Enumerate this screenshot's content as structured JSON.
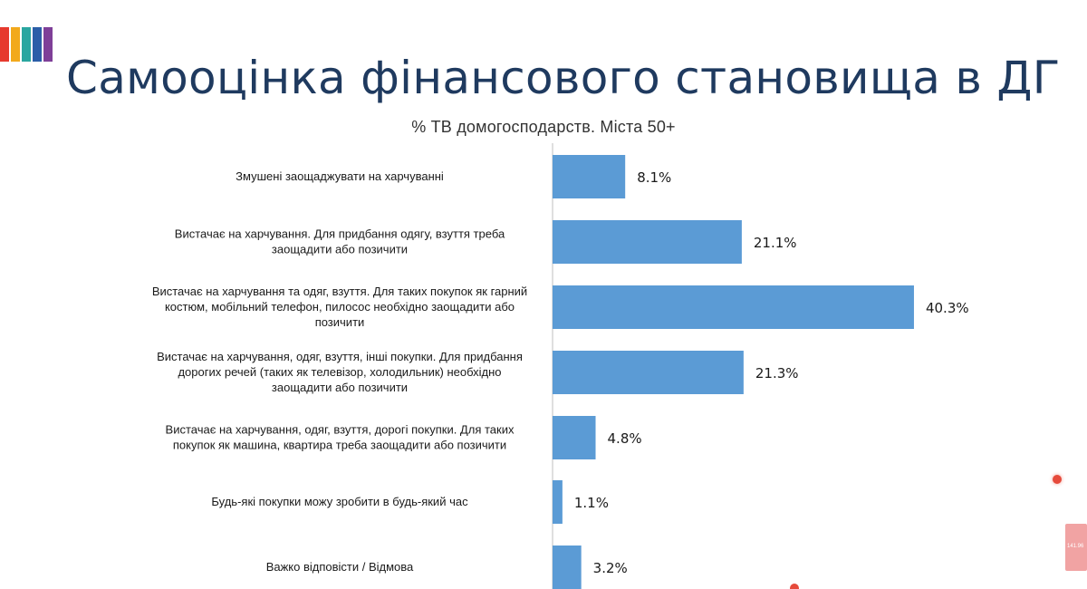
{
  "slide": {
    "title": "Самооцінка фінансового становища в ДГ",
    "subtitle": "% ТВ домогосподарств. Міста 50+",
    "logo_colors": [
      "#e63a2e",
      "#f2a91c",
      "#2aa6a0",
      "#2b5ea8",
      "#7e3f98"
    ],
    "side_thumb_text": "141.96"
  },
  "chart_data": {
    "type": "bar",
    "orientation": "horizontal",
    "title": "",
    "categories": [
      [
        "Змушені заощаджувати на харчуванні"
      ],
      [
        "Вистачає на харчування. Для придбання одягу, взуття треба",
        "заощадити або позичити"
      ],
      [
        "Вистачає на харчування та одяг, взуття. Для таких покупок як гарний",
        "костюм, мобільний телефон, пилосос необхідно заощадити або",
        "позичити"
      ],
      [
        "Вистачає на харчування, одяг, взуття, інші покупки. Для придбання",
        "дорогих речей (таких як телевізор, холодильник) необхідно",
        "заощадити або позичити"
      ],
      [
        "Вистачає на харчування, одяг, взуття, дорогі покупки. Для таких",
        "покупок як машина, квартира треба заощадити або позичити"
      ],
      [
        "Будь-які покупки можу зробити в будь-який час"
      ],
      [
        "Важко відповісти / Відмова"
      ]
    ],
    "values": [
      8.1,
      21.1,
      40.3,
      21.3,
      4.8,
      1.1,
      3.2
    ],
    "value_labels": [
      "8.1%",
      "21.1%",
      "40.3%",
      "21.3%",
      "4.8%",
      "1.1%",
      "3.2%"
    ],
    "bar_color": "#5b9bd5",
    "axis_line_color": "#bfbfbf",
    "xlim": [
      0,
      45
    ],
    "grid": false,
    "legend": "none"
  }
}
